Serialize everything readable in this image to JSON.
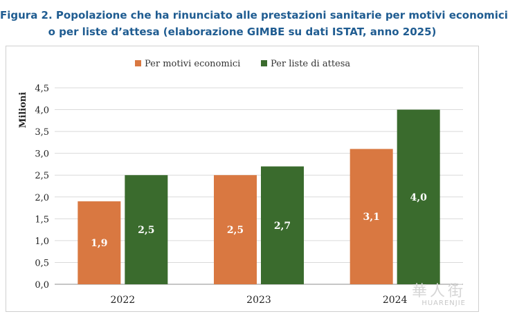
{
  "title": {
    "line1": "Figura 2. Popolazione che ha rinunciato alle prestazioni sanitarie per motivi economici",
    "line2": "o per liste d’attesa (elaborazione GIMBE su dati ISTAT, anno 2025)"
  },
  "watermark": {
    "glyphs": "華人街",
    "text": "HUARENJIE"
  },
  "colors": {
    "economici": "#d97841",
    "attesa": "#3a6b2d",
    "grid": "#d9d9d9",
    "axis": "#8c8c8c"
  },
  "chart_data": {
    "type": "bar",
    "title": "Popolazione che ha rinunciato alle prestazioni sanitarie per motivi economici o per liste d’attesa",
    "xlabel": "",
    "ylabel": "Milioni",
    "ylim": [
      0,
      4.5
    ],
    "yticks": [
      "0,0",
      "0,5",
      "1,0",
      "1,5",
      "2,0",
      "2,5",
      "3,0",
      "3,5",
      "4,0",
      "4,5"
    ],
    "categories": [
      "2022",
      "2023",
      "2024"
    ],
    "legend_position": "top",
    "grid": true,
    "series": [
      {
        "name": "Per motivi economici",
        "values": [
          1.9,
          2.5,
          3.1
        ],
        "labels": [
          "1,9",
          "2,5",
          "3,1"
        ],
        "color": "#d97841"
      },
      {
        "name": "Per liste di attesa",
        "values": [
          2.5,
          2.7,
          4.0
        ],
        "labels": [
          "2,5",
          "2,7",
          "4,0"
        ],
        "color": "#3a6b2d"
      }
    ]
  }
}
